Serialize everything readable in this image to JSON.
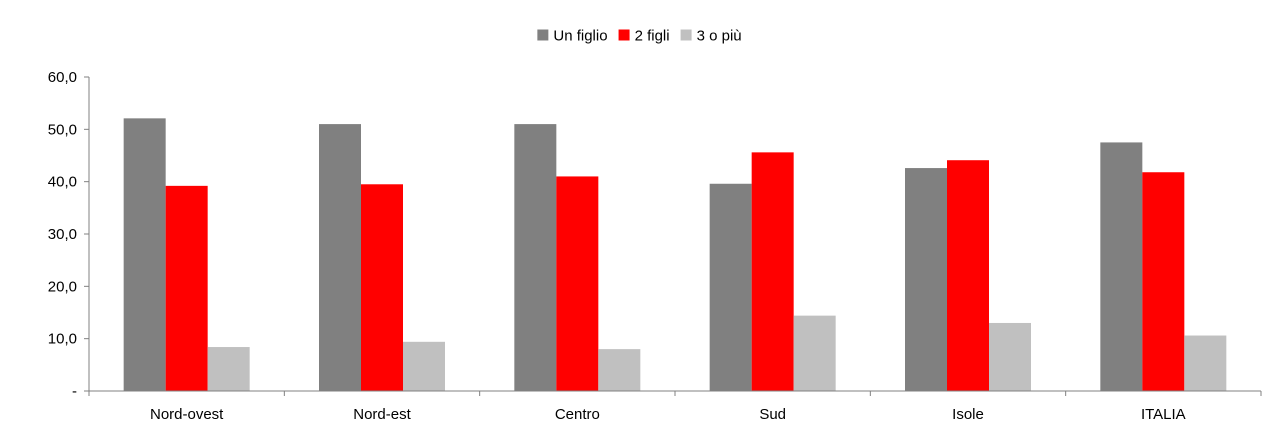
{
  "chart_data": {
    "type": "bar",
    "categories": [
      "Nord-ovest",
      "Nord-est",
      "Centro",
      "Sud",
      "Isole",
      "ITALIA"
    ],
    "series": [
      {
        "name": "Un figlio",
        "values": [
          52.1,
          51.0,
          51.0,
          39.6,
          42.6,
          47.5
        ],
        "color": "#808080"
      },
      {
        "name": "2 figli",
        "values": [
          39.2,
          39.5,
          41.0,
          45.6,
          44.1,
          41.8
        ],
        "color": "#ff0000"
      },
      {
        "name": "3 o più",
        "values": [
          8.4,
          9.4,
          8.0,
          14.4,
          13.0,
          10.6
        ],
        "color": "#c0c0c0"
      }
    ],
    "ylim": [
      0,
      60
    ],
    "yticks": [
      "-",
      "10,0",
      "20,0",
      "30,0",
      "40,0",
      "50,0",
      "60,0"
    ],
    "legend_position": "top-center",
    "grid": false
  }
}
